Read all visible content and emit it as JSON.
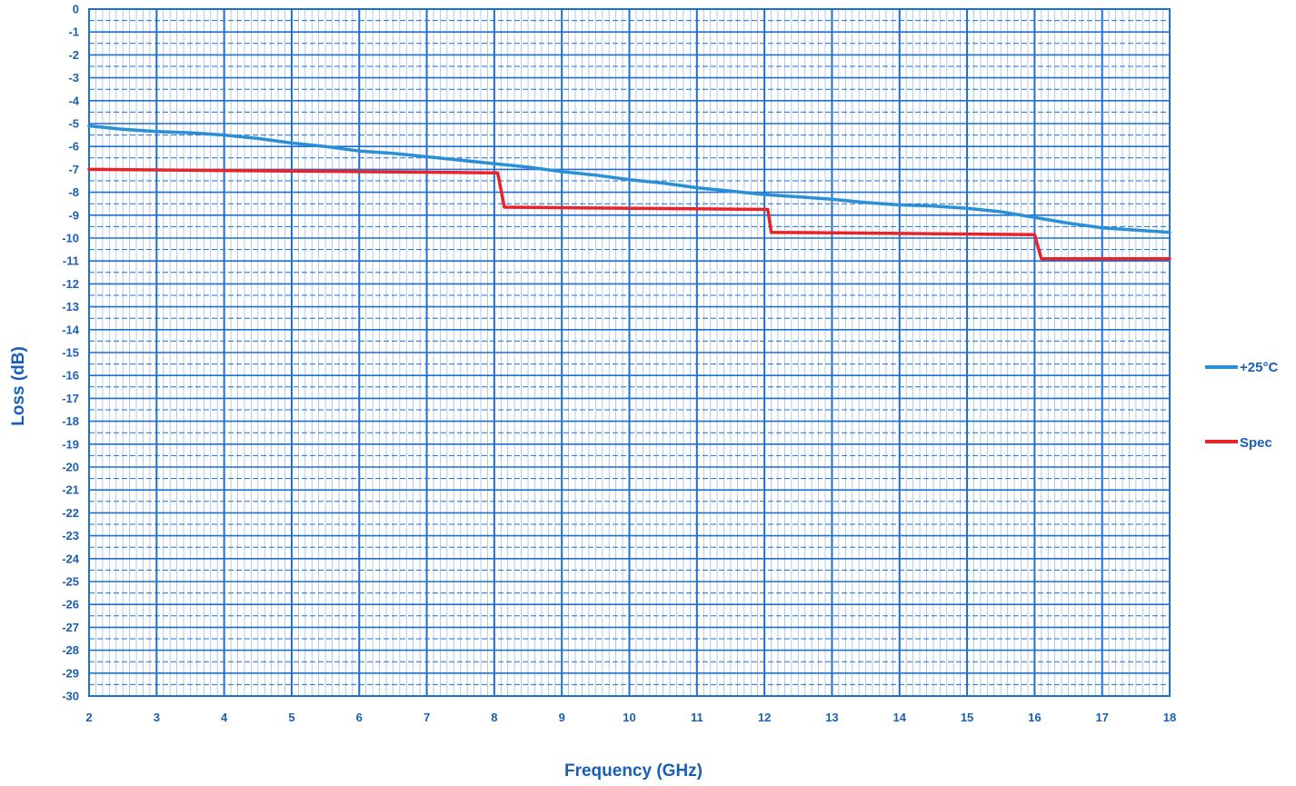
{
  "chart_data": {
    "type": "line",
    "xlabel": "Frequency (GHz)",
    "ylabel": "Loss (dB)",
    "xlim": [
      2,
      18
    ],
    "ylim": [
      -30,
      0
    ],
    "x_ticks": [
      2,
      3,
      4,
      5,
      6,
      7,
      8,
      9,
      10,
      11,
      12,
      13,
      14,
      15,
      16,
      17,
      18
    ],
    "y_ticks": [
      0,
      -1,
      -2,
      -3,
      -4,
      -5,
      -6,
      -7,
      -8,
      -9,
      -10,
      -11,
      -12,
      -13,
      -14,
      -15,
      -16,
      -17,
      -18,
      -19,
      -20,
      -21,
      -22,
      -23,
      -24,
      -25,
      -26,
      -27,
      -28,
      -29,
      -30
    ],
    "grid": true,
    "legend_position": "right",
    "colors": {
      "grid_major": "#1f6fd1",
      "grid_minor": "#9ebfe8",
      "text": "#1a5fb4"
    },
    "series": [
      {
        "name": "+25°C",
        "color": "#2a8fd6",
        "x": [
          2,
          2.5,
          3,
          3.5,
          4,
          4.5,
          5,
          5.5,
          6,
          6.5,
          7,
          7.5,
          8,
          8.5,
          9,
          9.5,
          10,
          10.5,
          11,
          11.5,
          12,
          12.5,
          13,
          13.5,
          14,
          14.5,
          15,
          15.5,
          16,
          16.5,
          17,
          17.5,
          18
        ],
        "y": [
          -5.1,
          -5.25,
          -5.35,
          -5.4,
          -5.5,
          -5.65,
          -5.85,
          -6.0,
          -6.2,
          -6.3,
          -6.45,
          -6.6,
          -6.75,
          -6.9,
          -7.1,
          -7.25,
          -7.45,
          -7.6,
          -7.8,
          -7.95,
          -8.1,
          -8.2,
          -8.3,
          -8.45,
          -8.55,
          -8.6,
          -8.7,
          -8.85,
          -9.1,
          -9.35,
          -9.55,
          -9.65,
          -9.75
        ]
      },
      {
        "name": "Spec",
        "color": "#e8232a",
        "x": [
          2,
          8.05,
          8.15,
          12.05,
          12.1,
          16.0,
          16.1,
          18
        ],
        "y": [
          -7.0,
          -7.15,
          -8.65,
          -8.75,
          -9.75,
          -9.85,
          -10.9,
          -10.9
        ]
      }
    ]
  }
}
